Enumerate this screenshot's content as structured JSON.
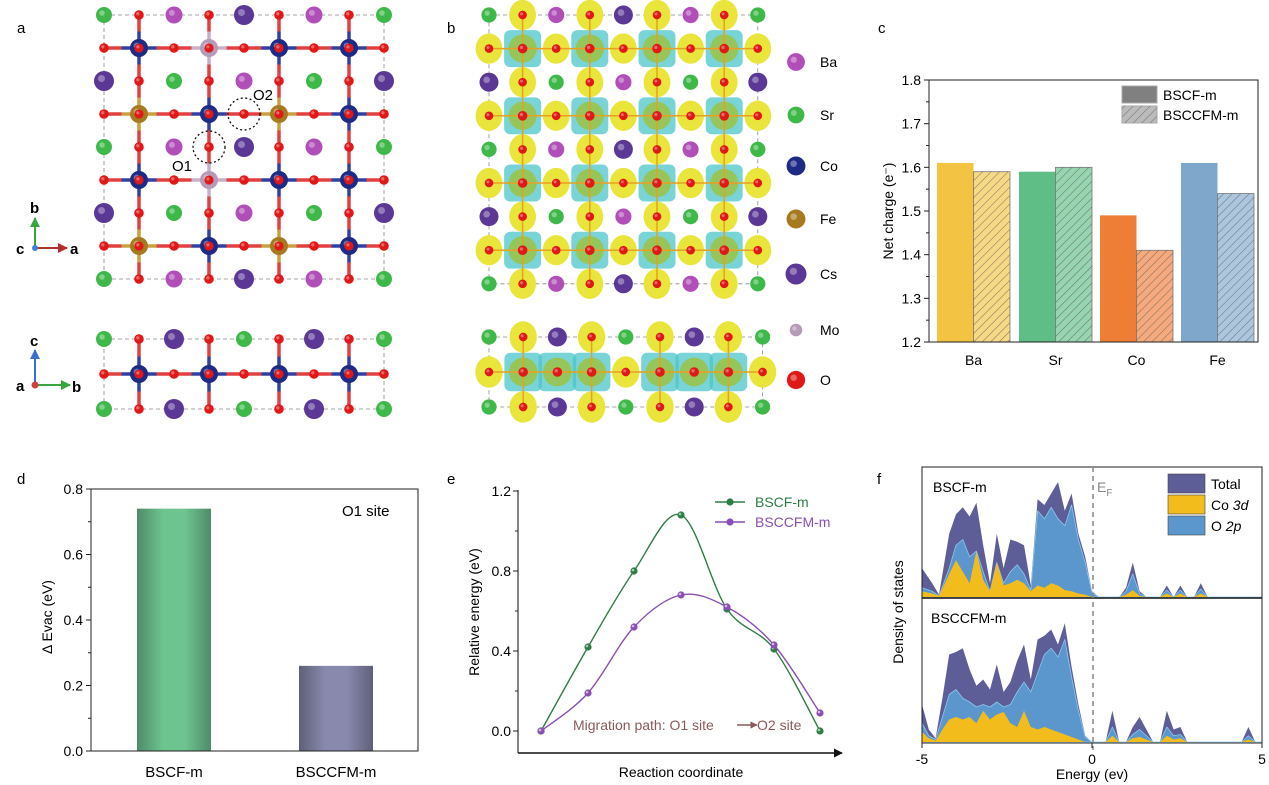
{
  "panel_labels": {
    "a": "a",
    "b": "b",
    "c": "c",
    "d": "d",
    "e": "e",
    "f": "f"
  },
  "structure": {
    "top_view_rows": [
      "SrOBaOCsOBaOSr",
      "OCoOMoOCoOCoO",
      "CsOSrOBaOSrOCs",
      "OFeOCoOFeOCoO",
      "SrOBaOCsOBaOSr",
      "OCoOMoOCoOCoO",
      "CsOSrOBaOSrOCs",
      "OFeOCoOFeOCoO",
      "SrOBaOCsOBaOSr"
    ],
    "top_grid": [
      [
        "Sr",
        "O",
        "Ba",
        "O",
        "Cs",
        "O",
        "Ba",
        "O",
        "Sr"
      ],
      [
        "O",
        "Co",
        "O",
        "Mo",
        "O",
        "Co",
        "O",
        "Co",
        "O"
      ],
      [
        "Cs",
        "O",
        "Sr",
        "O",
        "Ba",
        "O",
        "Sr",
        "O",
        "Cs"
      ],
      [
        "O",
        "Fe",
        "O",
        "Co",
        "O",
        "Fe",
        "O",
        "Co",
        "O"
      ],
      [
        "Sr",
        "O",
        "Ba",
        "O",
        "Cs",
        "O",
        "Ba",
        "O",
        "Sr"
      ],
      [
        "O",
        "Co",
        "O",
        "Mo",
        "O",
        "Co",
        "O",
        "Co",
        "O"
      ],
      [
        "Cs",
        "O",
        "Sr",
        "O",
        "Ba",
        "O",
        "Sr",
        "O",
        "Cs"
      ],
      [
        "O",
        "Fe",
        "O",
        "Co",
        "O",
        "Fe",
        "O",
        "Co",
        "O"
      ],
      [
        "Sr",
        "O",
        "Ba",
        "O",
        "Cs",
        "O",
        "Ba",
        "O",
        "Sr"
      ]
    ],
    "side_grid_a": [
      [
        "Sr",
        "O",
        "Cs",
        "O",
        "Sr",
        "O",
        "Cs",
        "O",
        "Sr"
      ],
      [
        "O",
        "Co",
        "O",
        "Co",
        "O",
        "Co",
        "O",
        "Co",
        "O"
      ],
      [
        "Sr",
        "O",
        "Cs",
        "O",
        "Sr",
        "O",
        "Cs",
        "O",
        "Sr"
      ]
    ],
    "b_top_grid": [
      [
        "Sr",
        "O",
        "Ba",
        "O",
        "Cs",
        "O",
        "Ba",
        "O",
        "Sr"
      ],
      [
        "O",
        "Co",
        "O",
        "Co",
        "O",
        "Co",
        "O",
        "Co",
        "O"
      ],
      [
        "Cs",
        "O",
        "Sr",
        "O",
        "Ba",
        "O",
        "Sr",
        "O",
        "Cs"
      ],
      [
        "O",
        "Co",
        "O",
        "Co",
        "O",
        "Co",
        "O",
        "Co",
        "O"
      ],
      [
        "Sr",
        "O",
        "Ba",
        "O",
        "Cs",
        "O",
        "Ba",
        "O",
        "Sr"
      ],
      [
        "O",
        "Co",
        "O",
        "Co",
        "O",
        "Co",
        "O",
        "Co",
        "O"
      ],
      [
        "Cs",
        "O",
        "Sr",
        "O",
        "Ba",
        "O",
        "Sr",
        "O",
        "Cs"
      ],
      [
        "O",
        "Co",
        "O",
        "Co",
        "O",
        "Co",
        "O",
        "Co",
        "O"
      ],
      [
        "Sr",
        "O",
        "Ba",
        "O",
        "Cs",
        "O",
        "Ba",
        "O",
        "Sr"
      ]
    ],
    "b_side_grid": [
      [
        "Sr",
        "O",
        "Cs",
        "O",
        "Sr",
        "O",
        "Cs",
        "O",
        "Sr"
      ],
      [
        "O",
        "Co",
        "Fe",
        "Co",
        "O",
        "Co",
        "Fe",
        "Co",
        "O"
      ],
      [
        "Sr",
        "O",
        "Cs",
        "O",
        "Sr",
        "O",
        "Cs",
        "O",
        "Sr"
      ]
    ],
    "site_labels": {
      "o1": "O1",
      "o2": "O2"
    },
    "axes_top": {
      "up": "b",
      "right": "a",
      "origin": "c"
    },
    "axes_side": {
      "up": "c",
      "right": "b",
      "origin": "a"
    },
    "element_colors": {
      "Ba": "#b04fb8",
      "Sr": "#3fb84a",
      "Co": "#1d2a86",
      "Fe": "#a67a1e",
      "Cs": "#5b3796",
      "Mo": "#b59bb8",
      "O": "#e01818"
    },
    "legend": [
      {
        "el": "Ba",
        "label": "Ba"
      },
      {
        "el": "Sr",
        "label": "Sr"
      },
      {
        "el": "Co",
        "label": "Co"
      },
      {
        "el": "Fe",
        "label": "Fe"
      },
      {
        "el": "Cs",
        "label": "Cs"
      },
      {
        "el": "Mo",
        "label": "Mo"
      },
      {
        "el": "O",
        "label": "O"
      }
    ]
  },
  "chart_data": [
    {
      "id": "c",
      "type": "bar",
      "title": "",
      "xlabel": "",
      "ylabel": "Net charge (e⁻)",
      "ylim": [
        1.2,
        1.8
      ],
      "yticks": [
        "1.2",
        "1.3",
        "1.4",
        "1.5",
        "1.6",
        "1.7",
        "1.8"
      ],
      "categories": [
        "Ba",
        "Sr",
        "Co",
        "Fe"
      ],
      "category_colors": [
        "#f3c443",
        "#5fbd86",
        "#ee7d36",
        "#7fa7cc"
      ],
      "series": [
        {
          "name": "BSCF-m",
          "pattern": "solid",
          "values": [
            1.61,
            1.59,
            1.49,
            1.61
          ]
        },
        {
          "name": "BSCCFM-m",
          "pattern": "hatched",
          "values": [
            1.59,
            1.6,
            1.41,
            1.54
          ]
        }
      ],
      "legend": "top-right"
    },
    {
      "id": "d",
      "type": "bar",
      "title": "",
      "annotation": "O1 site",
      "xlabel": "",
      "ylabel": "Δ Evac (eV)",
      "ylim": [
        0.0,
        0.8
      ],
      "yticks": [
        "0.0",
        "0.2",
        "0.4",
        "0.6",
        "0.8"
      ],
      "categories": [
        "BSCF-m",
        "BSCCFM-m"
      ],
      "values": [
        0.74,
        0.26
      ],
      "colors": [
        "#5fbd86",
        "#8486a8"
      ]
    },
    {
      "id": "e",
      "type": "line",
      "xlabel": "Reaction coordinate",
      "ylabel": "Relative energy (eV)",
      "ylim": [
        -0.1,
        1.2
      ],
      "yticks": [
        "0.0",
        "0.4",
        "0.8",
        "1.2"
      ],
      "x": [
        0,
        1,
        2,
        3,
        4,
        5,
        6
      ],
      "series": [
        {
          "name": "BSCF-m",
          "color": "#2e7d45",
          "values": [
            0.0,
            0.42,
            0.8,
            1.08,
            0.61,
            0.41,
            0.0
          ]
        },
        {
          "name": "BSCCFM-m",
          "color": "#8a4fb5",
          "values": [
            0.0,
            0.19,
            0.52,
            0.68,
            0.62,
            0.43,
            0.09
          ]
        }
      ],
      "annotation": "Migration path: O1 site",
      "annotation_end": "O2 site",
      "annotation_color": "#8a5a5a",
      "legend": "top-right"
    },
    {
      "id": "f",
      "type": "area",
      "xlabel": "Energy (ev)",
      "ylabel": "Density of states",
      "xlim": [
        -5,
        5
      ],
      "xticks": [
        "-5",
        "0",
        "5"
      ],
      "fermi_label": "E",
      "fermi_sub": "F",
      "legend_items": [
        {
          "name": "Total",
          "color": "#5d5d97",
          "italic_part": ""
        },
        {
          "name": "Co ",
          "color": "#f2bd1c",
          "italic_part": "3d"
        },
        {
          "name": "O ",
          "color": "#5b97cc",
          "italic_part": "2p"
        }
      ],
      "panels": [
        {
          "name": "BSCF-m",
          "energy": [
            -5,
            -4.7,
            -4.5,
            -4.2,
            -4.0,
            -3.8,
            -3.6,
            -3.4,
            -3.2,
            -3.0,
            -2.8,
            -2.6,
            -2.4,
            -2.2,
            -2.0,
            -1.8,
            -1.6,
            -1.4,
            -1.2,
            -1.0,
            -0.8,
            -0.6,
            -0.4,
            -0.2,
            0.0,
            0.2,
            0.4,
            0.6,
            0.8,
            1.0,
            1.2,
            1.4,
            1.6,
            1.8,
            2.0,
            2.2,
            2.4,
            2.6,
            2.8,
            3.0,
            3.2,
            3.4,
            3.6,
            4.0,
            5.0
          ],
          "total": [
            0.25,
            0.12,
            0.02,
            0.55,
            0.72,
            0.78,
            0.7,
            0.82,
            0.45,
            0.12,
            0.55,
            0.25,
            0.5,
            0.48,
            0.45,
            0.1,
            0.85,
            0.8,
            0.9,
            1.0,
            0.75,
            0.9,
            0.55,
            0.35,
            0.05,
            0.0,
            0.0,
            0.0,
            0.0,
            0.08,
            0.3,
            0.05,
            0.0,
            0.0,
            0.0,
            0.1,
            0.0,
            0.1,
            0.0,
            0.0,
            0.12,
            0.0,
            0.0,
            0.0,
            0.0
          ],
          "o2p": [
            0.08,
            0.05,
            0.01,
            0.25,
            0.45,
            0.5,
            0.35,
            0.4,
            0.22,
            0.05,
            0.3,
            0.12,
            0.22,
            0.28,
            0.2,
            0.06,
            0.75,
            0.68,
            0.78,
            0.68,
            0.62,
            0.8,
            0.5,
            0.3,
            0.04,
            0.0,
            0.0,
            0.0,
            0.0,
            0.05,
            0.2,
            0.03,
            0.0,
            0.0,
            0.0,
            0.06,
            0.0,
            0.06,
            0.0,
            0.0,
            0.07,
            0.0,
            0.0,
            0.0,
            0.0
          ],
          "co3d": [
            0.05,
            0.03,
            0.01,
            0.2,
            0.32,
            0.22,
            0.12,
            0.4,
            0.15,
            0.05,
            0.3,
            0.1,
            0.12,
            0.15,
            0.12,
            0.05,
            0.1,
            0.08,
            0.12,
            0.1,
            0.06,
            0.05,
            0.03,
            0.02,
            0.0,
            0.0,
            0.0,
            0.0,
            0.0,
            0.02,
            0.06,
            0.01,
            0.0,
            0.0,
            0.0,
            0.03,
            0.0,
            0.03,
            0.0,
            0.0,
            0.03,
            0.0,
            0.0,
            0.0,
            0.0
          ]
        },
        {
          "name": "BSCCFM-m",
          "energy": [
            -5,
            -4.8,
            -4.6,
            -4.4,
            -4.2,
            -4.0,
            -3.8,
            -3.6,
            -3.4,
            -3.2,
            -3.0,
            -2.8,
            -2.6,
            -2.4,
            -2.2,
            -2.0,
            -1.8,
            -1.6,
            -1.4,
            -1.2,
            -1.0,
            -0.8,
            -0.6,
            -0.4,
            -0.2,
            0.0,
            0.2,
            0.4,
            0.6,
            0.8,
            1.0,
            1.2,
            1.4,
            1.6,
            1.8,
            2.0,
            2.2,
            2.4,
            2.6,
            2.8,
            3.0,
            4.4,
            4.6,
            4.8,
            5.0
          ],
          "total": [
            0.3,
            0.1,
            0.03,
            0.35,
            0.7,
            0.72,
            0.75,
            0.58,
            0.45,
            0.5,
            0.42,
            0.62,
            0.4,
            0.48,
            0.65,
            0.78,
            0.5,
            0.82,
            0.85,
            0.9,
            0.78,
            0.95,
            0.6,
            0.3,
            0.05,
            0.0,
            0.0,
            0.0,
            0.25,
            0.0,
            0.0,
            0.12,
            0.2,
            0.1,
            0.0,
            0.0,
            0.25,
            0.1,
            0.12,
            0.0,
            0.0,
            0.0,
            0.12,
            0.0,
            0.0
          ],
          "o2p": [
            0.15,
            0.05,
            0.02,
            0.2,
            0.38,
            0.42,
            0.35,
            0.32,
            0.28,
            0.3,
            0.28,
            0.32,
            0.28,
            0.3,
            0.4,
            0.48,
            0.4,
            0.55,
            0.7,
            0.75,
            0.68,
            0.82,
            0.52,
            0.25,
            0.04,
            0.0,
            0.0,
            0.0,
            0.12,
            0.0,
            0.0,
            0.06,
            0.1,
            0.05,
            0.0,
            0.0,
            0.12,
            0.05,
            0.06,
            0.0,
            0.0,
            0.0,
            0.05,
            0.0,
            0.0
          ],
          "co3d": [
            0.08,
            0.03,
            0.01,
            0.1,
            0.18,
            0.2,
            0.18,
            0.2,
            0.15,
            0.25,
            0.18,
            0.22,
            0.24,
            0.15,
            0.12,
            0.25,
            0.12,
            0.1,
            0.12,
            0.1,
            0.08,
            0.06,
            0.04,
            0.02,
            0.0,
            0.0,
            0.0,
            0.0,
            0.05,
            0.0,
            0.0,
            0.03,
            0.04,
            0.02,
            0.0,
            0.0,
            0.05,
            0.02,
            0.03,
            0.0,
            0.0,
            0.0,
            0.02,
            0.0,
            0.0
          ]
        }
      ]
    }
  ]
}
